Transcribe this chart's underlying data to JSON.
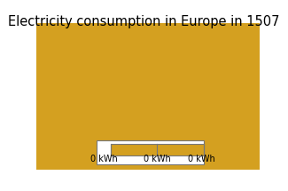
{
  "title": "Electricity consumption in Europe in 1507",
  "title_fontsize": 10.5,
  "land_color": "#D4A020",
  "ocean_color": "#5B9EC9",
  "border_color": "#3A2800",
  "border_linewidth": 0.45,
  "legend_labels": [
    "0 kWh",
    "0 kWh",
    "0 kWh"
  ],
  "legend_bar_color": "#D4A020",
  "legend_bg_color": "#FFFFFF",
  "legend_border_color": "#777777",
  "xlim": [
    -25,
    45
  ],
  "ylim": [
    34,
    72
  ],
  "fig_width": 3.25,
  "fig_height": 2.15,
  "dpi": 100
}
